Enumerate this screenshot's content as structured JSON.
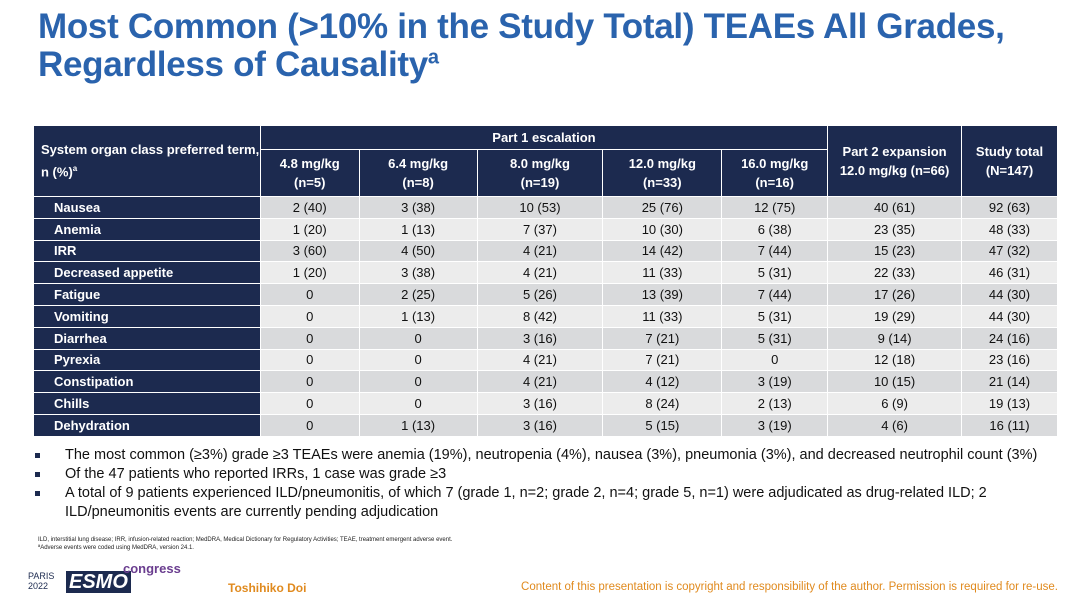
{
  "title": "Most Common (>10% in the Study Total) TEAEs All Grades, Regardless of Causality",
  "title_sup": "a",
  "table": {
    "corner_header": "System organ class preferred term, n (%)",
    "corner_sup": "a",
    "group_header": "Part 1 escalation",
    "columns": [
      [
        "4.8 mg/kg",
        "(n=5)"
      ],
      [
        "6.4 mg/kg",
        "(n=8)"
      ],
      [
        "8.0 mg/kg",
        "(n=19)"
      ],
      [
        "12.0 mg/kg",
        "(n=33)"
      ],
      [
        "16.0 mg/kg",
        "(n=16)"
      ],
      [
        "Part 2 expansion",
        "12.0 mg/kg (n=66)"
      ],
      [
        "Study total",
        "(N=147)"
      ]
    ],
    "rows": [
      [
        "Nausea",
        "2 (40)",
        "3 (38)",
        "10 (53)",
        "25 (76)",
        "12 (75)",
        "40 (61)",
        "92 (63)"
      ],
      [
        "Anemia",
        "1 (20)",
        "1 (13)",
        "7 (37)",
        "10 (30)",
        "6 (38)",
        "23 (35)",
        "48 (33)"
      ],
      [
        "IRR",
        "3 (60)",
        "4 (50)",
        "4 (21)",
        "14 (42)",
        "7 (44)",
        "15 (23)",
        "47 (32)"
      ],
      [
        "Decreased appetite",
        "1 (20)",
        "3 (38)",
        "4 (21)",
        "11 (33)",
        "5 (31)",
        "22 (33)",
        "46 (31)"
      ],
      [
        "Fatigue",
        "0",
        "2 (25)",
        "5 (26)",
        "13 (39)",
        "7 (44)",
        "17 (26)",
        "44 (30)"
      ],
      [
        "Vomiting",
        "0",
        "1 (13)",
        "8 (42)",
        "11 (33)",
        "5 (31)",
        "19 (29)",
        "44 (30)"
      ],
      [
        "Diarrhea",
        "0",
        "0",
        "3 (16)",
        "7 (21)",
        "5 (31)",
        "9 (14)",
        "24 (16)"
      ],
      [
        "Pyrexia",
        "0",
        "0",
        "4 (21)",
        "7 (21)",
        "0",
        "12 (18)",
        "23 (16)"
      ],
      [
        "Constipation",
        "0",
        "0",
        "4 (21)",
        "4 (12)",
        "3 (19)",
        "10 (15)",
        "21 (14)"
      ],
      [
        "Chills",
        "0",
        "0",
        "3 (16)",
        "8 (24)",
        "2 (13)",
        "6 (9)",
        "19 (13)"
      ],
      [
        "Dehydration",
        "0",
        "1 (13)",
        "3 (16)",
        "5 (15)",
        "3 (19)",
        "4 (6)",
        "16 (11)"
      ]
    ]
  },
  "bullets": [
    "The most common (≥3%) grade ≥3 TEAEs were anemia (19%), neutropenia (4%), nausea (3%), pneumonia (3%), and decreased neutrophil count (3%)",
    "Of the 47 patients who reported IRRs, 1 case was grade ≥3",
    "A total of 9 patients experienced ILD/pneumonitis, of which 7 (grade 1, n=2; grade 2, n=4; grade 5, n=1) were adjudicated as drug-related ILD; 2 ILD/pneumonitis events are currently pending adjudication"
  ],
  "footnotes": [
    "ILD, interstitial lung disease; IRR, infusion-related reaction; MedDRA, Medical Dictionary for Regulatory Activities; TEAE, treatment emergent adverse event.",
    "ªAdverse events were coded using MedDRA, version 24.1."
  ],
  "footer": {
    "city": "PARIS",
    "year": "2022",
    "brand": "ESMO",
    "brand_suffix": "congress",
    "author": "Toshihiko Doi",
    "copyright": "Content of this presentation is copyright and responsibility of the author. Permission is required for re-use."
  }
}
